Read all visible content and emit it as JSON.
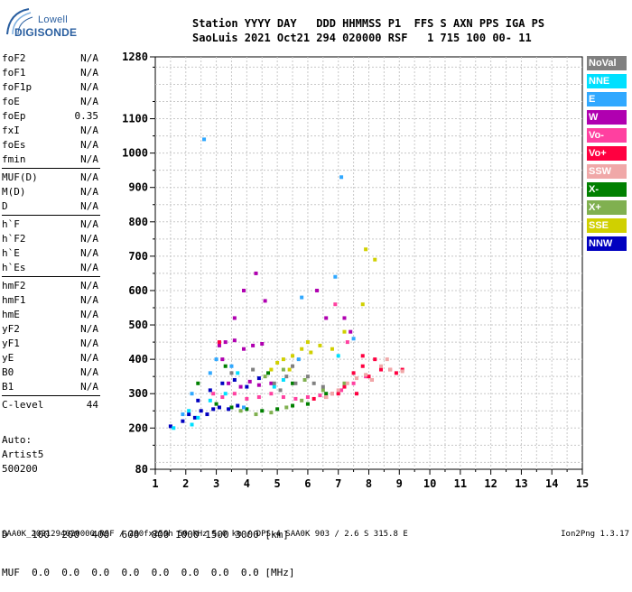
{
  "logo": {
    "brand": "Lowell",
    "product": "DIGISONDE"
  },
  "header": {
    "row1": "Station YYYY DAY   DDD HHMMSS P1  FFS S AXN PPS IGA PS",
    "row2": "SaoLuis 2021 Oct21 294 020000 RSF   1 715 100 00- 11"
  },
  "parameters": [
    {
      "label": "foF2",
      "value": "N/A"
    },
    {
      "label": "foF1",
      "value": "N/A"
    },
    {
      "label": "foF1p",
      "value": "N/A"
    },
    {
      "label": "foE",
      "value": "N/A"
    },
    {
      "label": "foEp",
      "value": "0.35"
    },
    {
      "label": "fxI",
      "value": "N/A"
    },
    {
      "label": "foEs",
      "value": "N/A"
    },
    {
      "label": "fmin",
      "value": "N/A"
    },
    {
      "label": "MUF(D)",
      "value": "N/A",
      "sep_before": true
    },
    {
      "label": "M(D)",
      "value": "N/A"
    },
    {
      "label": "D",
      "value": "N/A"
    },
    {
      "label": "h`F",
      "value": "N/A",
      "sep_before": true
    },
    {
      "label": "h`F2",
      "value": "N/A"
    },
    {
      "label": "h`E",
      "value": "N/A"
    },
    {
      "label": "h`Es",
      "value": "N/A"
    },
    {
      "label": "hmF2",
      "value": "N/A",
      "sep_before": true
    },
    {
      "label": "hmF1",
      "value": "N/A"
    },
    {
      "label": "hmE",
      "value": "N/A"
    },
    {
      "label": "yF2",
      "value": "N/A"
    },
    {
      "label": "yF1",
      "value": "N/A"
    },
    {
      "label": "yE",
      "value": "N/A"
    },
    {
      "label": "B0",
      "value": "N/A"
    },
    {
      "label": "B1",
      "value": "N/A"
    },
    {
      "label": "C-level",
      "value": "44",
      "sep_before": true
    }
  ],
  "autoscaling": {
    "line1": "Auto:",
    "line2": "Artist5",
    "line3": "500200"
  },
  "legend": [
    {
      "label": "NoVal",
      "color": "#808080"
    },
    {
      "label": "NNE",
      "color": "#00e0ff"
    },
    {
      "label": "E",
      "color": "#30a8ff"
    },
    {
      "label": "W",
      "color": "#b000b0"
    },
    {
      "label": "Vo-",
      "color": "#ff40a0"
    },
    {
      "label": "Vo+",
      "color": "#ff0040"
    },
    {
      "label": "SSW",
      "color": "#f0a8a8"
    },
    {
      "label": "X-",
      "color": "#008000"
    },
    {
      "label": "X+",
      "color": "#80b050"
    },
    {
      "label": "SSE",
      "color": "#d0d000"
    },
    {
      "label": "NNW",
      "color": "#0000c0"
    }
  ],
  "freq_table": {
    "row1": "D    100  200  400  600  800 1000 1500 3000 [km]",
    "row2": "MUF  0.0  0.0  0.0  0.0  0.0  0.0  0.0  0.0 [MHz]"
  },
  "footer": {
    "left": "SAA0K_2021294020000.RSF / 280fx256h 50 kHz 5.0 km / DPS-4 SAA0K 903 / 2.6 S 315.8 E",
    "right": "Ion2Png 1.3.17"
  },
  "chart_data": {
    "type": "scatter",
    "xlim": [
      1,
      15
    ],
    "ylim": [
      80,
      1280
    ],
    "x_ticks": [
      1,
      2,
      3,
      4,
      5,
      6,
      7,
      8,
      9,
      10,
      11,
      12,
      13,
      14,
      15
    ],
    "y_ticks": [
      80,
      200,
      300,
      400,
      500,
      600,
      700,
      800,
      900,
      1000,
      1100,
      1280
    ],
    "grid": true,
    "series": [
      {
        "name": "W",
        "color": "#b000b0",
        "points": [
          [
            3.1,
            440
          ],
          [
            3.3,
            450
          ],
          [
            3.6,
            455
          ],
          [
            3.9,
            430
          ],
          [
            4.2,
            440
          ],
          [
            4.5,
            445
          ],
          [
            3.4,
            330
          ],
          [
            3.8,
            320
          ],
          [
            4.1,
            335
          ],
          [
            4.4,
            325
          ],
          [
            3.9,
            600
          ],
          [
            4.3,
            650
          ],
          [
            3.6,
            520
          ],
          [
            4.6,
            570
          ],
          [
            3.2,
            400
          ],
          [
            4.8,
            330
          ],
          [
            7.2,
            520
          ],
          [
            7.4,
            480
          ],
          [
            6.3,
            600
          ],
          [
            6.6,
            520
          ]
        ]
      },
      {
        "name": "Vo-",
        "color": "#ff40a0",
        "points": [
          [
            2.9,
            300
          ],
          [
            3.2,
            290
          ],
          [
            3.6,
            300
          ],
          [
            4.0,
            285
          ],
          [
            4.4,
            290
          ],
          [
            4.8,
            300
          ],
          [
            5.2,
            290
          ],
          [
            5.6,
            285
          ],
          [
            6.0,
            290
          ],
          [
            6.4,
            295
          ],
          [
            6.8,
            300
          ],
          [
            7.1,
            310
          ],
          [
            7.5,
            330
          ],
          [
            7.9,
            350
          ],
          [
            7.3,
            450
          ],
          [
            6.9,
            560
          ]
        ]
      },
      {
        "name": "Vo+",
        "color": "#ff0040",
        "points": [
          [
            7.0,
            300
          ],
          [
            7.2,
            320
          ],
          [
            7.5,
            360
          ],
          [
            7.8,
            380
          ],
          [
            8.0,
            350
          ],
          [
            8.2,
            400
          ],
          [
            8.4,
            370
          ],
          [
            8.7,
            370
          ],
          [
            8.9,
            360
          ],
          [
            9.1,
            370
          ],
          [
            7.6,
            300
          ],
          [
            6.6,
            290
          ],
          [
            6.2,
            285
          ],
          [
            3.1,
            450
          ],
          [
            7.8,
            410
          ],
          [
            8.1,
            340
          ]
        ]
      },
      {
        "name": "X-",
        "color": "#008000",
        "points": [
          [
            3.0,
            270
          ],
          [
            3.5,
            260
          ],
          [
            4.0,
            255
          ],
          [
            4.5,
            250
          ],
          [
            5.0,
            255
          ],
          [
            5.5,
            265
          ],
          [
            6.0,
            270
          ],
          [
            3.3,
            380
          ],
          [
            4.7,
            360
          ],
          [
            5.5,
            330
          ],
          [
            6.6,
            300
          ],
          [
            2.4,
            330
          ]
        ]
      },
      {
        "name": "X+",
        "color": "#80b050",
        "points": [
          [
            3.8,
            250
          ],
          [
            4.3,
            240
          ],
          [
            4.8,
            245
          ],
          [
            5.3,
            260
          ],
          [
            5.8,
            280
          ],
          [
            4.6,
            350
          ],
          [
            5.2,
            370
          ],
          [
            5.9,
            340
          ],
          [
            6.5,
            310
          ],
          [
            7.2,
            330
          ]
        ]
      },
      {
        "name": "SSE",
        "color": "#d0d000",
        "points": [
          [
            4.8,
            370
          ],
          [
            5.0,
            390
          ],
          [
            5.2,
            400
          ],
          [
            5.5,
            410
          ],
          [
            5.8,
            430
          ],
          [
            6.1,
            420
          ],
          [
            6.4,
            440
          ],
          [
            6.8,
            430
          ],
          [
            7.2,
            480
          ],
          [
            7.8,
            560
          ],
          [
            8.2,
            690
          ],
          [
            7.9,
            720
          ],
          [
            6.0,
            450
          ],
          [
            5.4,
            370
          ]
        ]
      },
      {
        "name": "NNW",
        "color": "#0000c0",
        "points": [
          [
            1.9,
            220
          ],
          [
            2.1,
            240
          ],
          [
            2.3,
            230
          ],
          [
            2.5,
            250
          ],
          [
            2.7,
            240
          ],
          [
            2.9,
            255
          ],
          [
            3.1,
            260
          ],
          [
            3.4,
            255
          ],
          [
            3.7,
            265
          ],
          [
            2.8,
            310
          ],
          [
            3.2,
            330
          ],
          [
            3.6,
            340
          ],
          [
            2.4,
            280
          ],
          [
            4.0,
            320
          ],
          [
            4.4,
            345
          ],
          [
            1.5,
            205
          ]
        ]
      },
      {
        "name": "E",
        "color": "#30a8ff",
        "points": [
          [
            2.6,
            1040
          ],
          [
            1.9,
            240
          ],
          [
            2.2,
            300
          ],
          [
            2.8,
            360
          ],
          [
            3.0,
            400
          ],
          [
            3.5,
            380
          ],
          [
            7.1,
            930
          ],
          [
            6.9,
            640
          ],
          [
            5.8,
            580
          ],
          [
            5.7,
            400
          ],
          [
            7.5,
            460
          ],
          [
            3.9,
            260
          ]
        ]
      },
      {
        "name": "NNE",
        "color": "#00e0ff",
        "points": [
          [
            2.1,
            250
          ],
          [
            2.4,
            230
          ],
          [
            2.8,
            280
          ],
          [
            3.3,
            300
          ],
          [
            3.7,
            360
          ],
          [
            4.9,
            320
          ],
          [
            5.2,
            340
          ],
          [
            7.0,
            410
          ],
          [
            1.6,
            200
          ],
          [
            2.2,
            210
          ]
        ]
      },
      {
        "name": "SSW",
        "color": "#f0a8a8",
        "points": [
          [
            6.6,
            290
          ],
          [
            6.8,
            300
          ],
          [
            7.0,
            310
          ],
          [
            7.3,
            330
          ],
          [
            7.6,
            345
          ],
          [
            7.9,
            355
          ],
          [
            8.1,
            340
          ],
          [
            8.4,
            380
          ],
          [
            8.7,
            370
          ],
          [
            9.1,
            365
          ],
          [
            8.6,
            400
          ]
        ]
      },
      {
        "name": "NoVal",
        "color": "#808080",
        "points": [
          [
            4.9,
            330
          ],
          [
            5.1,
            310
          ],
          [
            5.3,
            350
          ],
          [
            5.6,
            330
          ],
          [
            6.0,
            350
          ],
          [
            6.2,
            330
          ],
          [
            6.5,
            320
          ],
          [
            5.5,
            380
          ],
          [
            3.5,
            360
          ],
          [
            4.2,
            370
          ]
        ]
      }
    ]
  }
}
